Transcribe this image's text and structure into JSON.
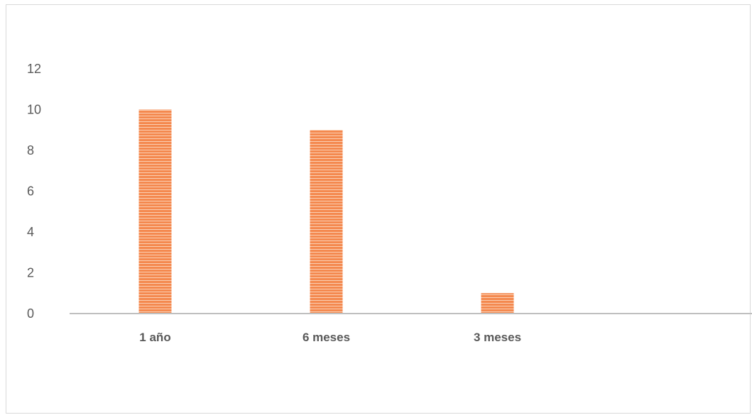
{
  "chart_data": {
    "type": "bar",
    "categories": [
      "1 año",
      "6 meses",
      "3 meses",
      ""
    ],
    "values": [
      10,
      9,
      1,
      0
    ],
    "title": "",
    "xlabel": "",
    "ylabel": "",
    "ylim": [
      0,
      12
    ],
    "yticks": [
      "0",
      "2",
      "4",
      "6",
      "8",
      "10",
      "12"
    ],
    "grid": false,
    "legend": "none",
    "colors": {
      "bar": "#f4894f",
      "bar_stripe": "#fbd0b4",
      "axis": "#bfbfbf",
      "text": "#595959"
    }
  }
}
